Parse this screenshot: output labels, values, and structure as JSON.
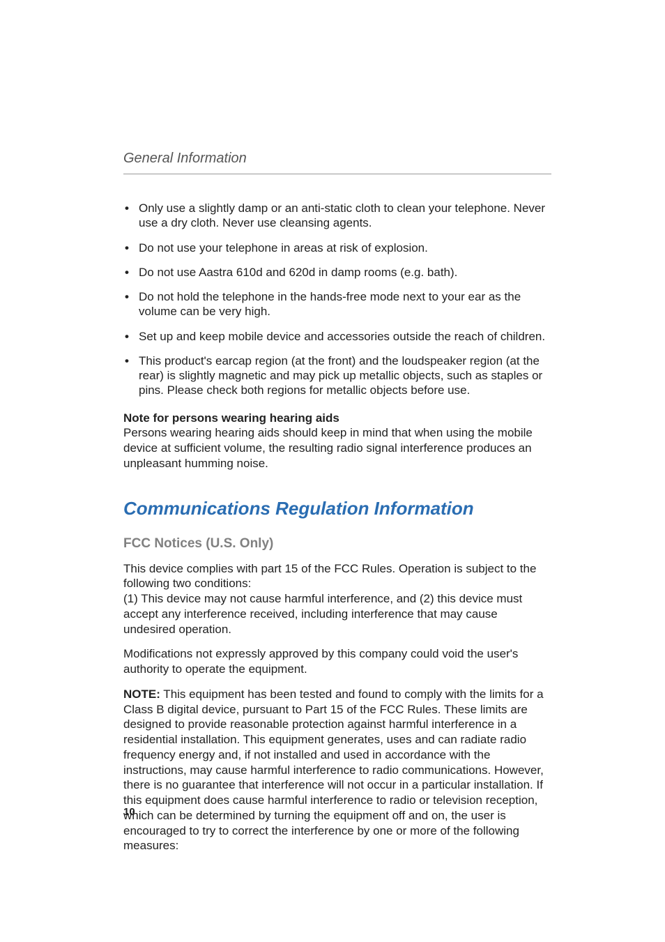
{
  "typography": {
    "body_font": "Myriad Pro / Segoe UI / Helvetica Neue",
    "body_size_pt": 13,
    "body_color": "#222222",
    "heading_color": "#2a6db2",
    "subheading_color": "#808080",
    "rule_color": "#999999",
    "page_bg": "#ffffff"
  },
  "running_head": "General Information",
  "bullets": [
    "Only use a slightly damp or an anti-static cloth to clean your telephone. Never use a dry cloth. Never use cleansing agents.",
    "Do not use your telephone in areas at risk of explosion.",
    "Do not use Aastra 610d and 620d in damp rooms (e.g. bath).",
    "Do not hold the telephone in the hands-free mode next to your ear as the volume can be very high.",
    "Set up and keep mobile device and accessories outside the reach of children.",
    "This product's earcap region (at the front) and the loudspeaker region (at the rear) is slightly magnetic and may pick up metallic objects, such as staples or pins. Please check both regions for metallic objects before use."
  ],
  "note": {
    "heading": "Note for persons wearing hearing aids",
    "body": "Persons wearing hearing aids should keep in mind that when using the mobile device at sufficient volume, the resulting radio signal interference produces an unpleasant humming noise."
  },
  "section_title": "Communications Regulation Information",
  "subsection_title": "FCC Notices (U.S. Only)",
  "fcc": {
    "p1a": "This device complies with part 15 of the FCC Rules. Operation is subject to the following two conditions:",
    "p1b": "(1) This device may not cause harmful interference, and (2) this device must accept any interference received, including interference that may cause undesired operation.",
    "p2": "Modifications not expressly approved by this company could void the user's authority to operate the equipment.",
    "note_label": "NOTE:",
    "note_body": " This equipment has been tested and found to comply with the limits for a Class B digital device, pursuant to Part 15 of the FCC Rules. These limits are designed to provide reasonable protection against harmful interference in a residential installation. This equipment generates, uses and can radiate radio frequency energy and, if not installed and used in accordance with the instructions, may cause harmful interference to radio communications. However, there is no guarantee that interference will not occur in a particular installation. If this equipment does cause harmful interference to radio or television reception, which can be determined by turning the equipment off and on, the user is encouraged to try to correct the interference by one or more of the following measures:"
  },
  "page_number": "10"
}
